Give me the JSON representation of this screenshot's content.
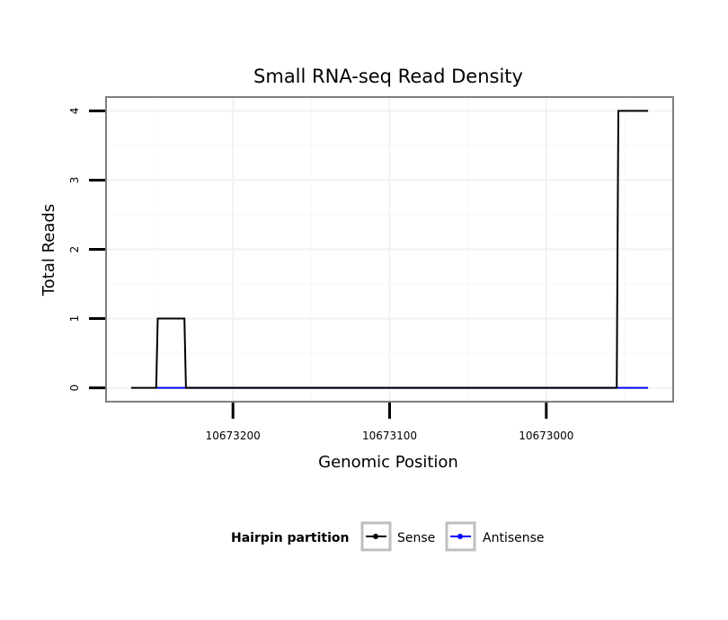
{
  "chart_data": {
    "type": "line",
    "title": "Small RNA-seq Read Density",
    "xlabel": "Genomic Position",
    "ylabel": "Total Reads",
    "x_reversed": true,
    "xlim": [
      10673281,
      10672919
    ],
    "ylim": [
      -0.2,
      4.2
    ],
    "x_ticks": [
      10673200,
      10673100,
      10673000
    ],
    "x_tick_labels": [
      "10673200",
      "10673100",
      "10673000"
    ],
    "y_ticks": [
      0,
      1,
      2,
      3,
      4
    ],
    "y_tick_labels": [
      "0",
      "1",
      "2",
      "3",
      "4"
    ],
    "grid": true,
    "legend": {
      "title": "Hairpin partition",
      "position": "bottom",
      "entries": [
        {
          "label": "Sense",
          "color": "#000000"
        },
        {
          "label": "Antisense",
          "color": "#0000ff"
        }
      ]
    },
    "series": [
      {
        "name": "Sense",
        "color": "#000000",
        "x": [
          10673265,
          10673249,
          10673248,
          10673231,
          10673230,
          10672955,
          10672954,
          10672935
        ],
        "y": [
          0,
          0,
          1,
          1,
          0,
          0,
          4,
          4
        ]
      },
      {
        "name": "Antisense",
        "color": "#0000ff",
        "x": [
          10673249,
          10673230,
          10672954,
          10672935
        ],
        "y": [
          0,
          0,
          0,
          0
        ]
      }
    ]
  }
}
